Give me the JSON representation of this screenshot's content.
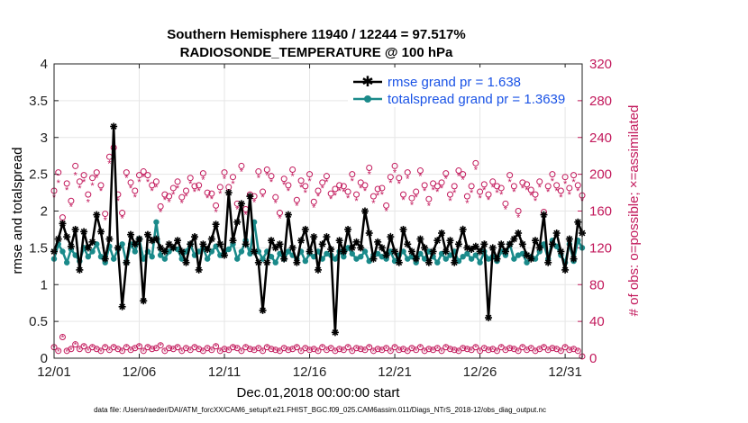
{
  "chart_data": {
    "type": "line",
    "title": "Southern Hemisphere 11940 / 12244 = 97.517%",
    "subtitle": "RADIOSONDE_TEMPERATURE @ 100 hPa",
    "xlabel": "Dec.01,2018 00:00:00 start",
    "ylabel": "rmse and totalspread",
    "ylabel_right": "# of obs: o=possible; ×=assimilated",
    "footer": "data file: /Users/raeder/DAI/ATM_forcXX/CAM6_setup/f.e21.FHIST_BGC.f09_025.CAM6assim.011/Diags_NTrS_2018-12/obs_diag_output.nc",
    "xlim": [
      0,
      124
    ],
    "ylim": [
      0,
      4
    ],
    "ylim_right": [
      0,
      320
    ],
    "x_ticks": [
      0,
      20,
      40,
      60,
      80,
      100,
      120
    ],
    "x_tick_labels": [
      "12/01",
      "12/06",
      "12/11",
      "12/16",
      "12/21",
      "12/26",
      "12/31"
    ],
    "y_ticks": [
      "0",
      "0.5",
      "1",
      "1.5",
      "2",
      "2.5",
      "3",
      "3.5",
      "4"
    ],
    "y_ticks_right": [
      "0",
      "40",
      "80",
      "120",
      "160",
      "200",
      "240",
      "280",
      "320"
    ],
    "legend": {
      "position": "top-right",
      "entries": [
        "rmse grand pr = 1.638",
        "totalspread grand pr = 1.3639"
      ]
    },
    "colors": {
      "rmse": "#000000",
      "totalspread": "#1a8a8a",
      "obs": "#c2185b"
    },
    "series": [
      {
        "name": "rmse grand pr = 1.638",
        "axis": "left",
        "values": [
          1.45,
          1.62,
          1.83,
          1.65,
          1.52,
          1.75,
          1.2,
          1.72,
          1.5,
          1.58,
          1.95,
          1.72,
          1.35,
          1.62,
          3.15,
          1.5,
          0.7,
          1.3,
          1.68,
          1.55,
          1.62,
          0.78,
          1.68,
          1.6,
          1.62,
          1.5,
          1.45,
          1.55,
          1.5,
          1.6,
          1.45,
          1.3,
          1.55,
          1.65,
          1.2,
          1.55,
          1.48,
          1.62,
          1.82,
          1.55,
          1.4,
          2.25,
          1.6,
          1.85,
          2.1,
          1.55,
          2.2,
          1.45,
          1.3,
          0.65,
          1.3,
          1.6,
          1.5,
          1.55,
          1.35,
          1.95,
          1.5,
          1.3,
          1.6,
          1.75,
          1.45,
          1.65,
          1.2,
          1.55,
          1.65,
          1.48,
          0.35,
          1.6,
          1.45,
          1.75,
          1.5,
          1.58,
          1.5,
          2,
          1.7,
          1.35,
          1.58,
          1.5,
          1.4,
          1.65,
          1.45,
          1.3,
          1.75,
          1.55,
          1.45,
          1.35,
          1.62,
          1.5,
          1.3,
          1.45,
          1.6,
          1.7,
          1.45,
          1.6,
          1.3,
          1.55,
          1.75,
          1.5,
          1.48,
          1.52,
          1.45,
          1.55,
          0.55,
          1.5,
          1.35,
          1.55,
          1.45,
          1.55,
          1.62,
          1.7,
          1.55,
          1.4,
          1.35,
          1.6,
          1.5,
          1.95,
          1.3,
          1.55,
          1.7,
          1.45,
          1.2,
          1.62,
          1.35,
          1.85,
          1.7
        ]
      },
      {
        "name": "totalspread grand pr = 1.3639",
        "axis": "left",
        "values": [
          1.35,
          1.55,
          1.45,
          1.3,
          1.48,
          1.4,
          1.32,
          1.5,
          1.38,
          1.45,
          1.55,
          1.38,
          1.3,
          1.52,
          1.35,
          1.48,
          1.55,
          1.3,
          1.55,
          1.45,
          1.62,
          1.35,
          1.45,
          1.38,
          1.85,
          1.4,
          1.35,
          1.45,
          1.5,
          1.48,
          1.35,
          1.45,
          1.55,
          1.4,
          1.45,
          1.5,
          1.35,
          1.45,
          1.52,
          1.4,
          1.45,
          1.48,
          1.55,
          1.35,
          1.45,
          1.6,
          1.42,
          1.85,
          1.45,
          1.35,
          1.45,
          1.38,
          1.3,
          1.42,
          1.35,
          1.45,
          1.4,
          1.35,
          1.45,
          1.32,
          1.42,
          1.38,
          1.45,
          1.35,
          1.42,
          1.4,
          1.35,
          1.45,
          1.38,
          1.5,
          1.42,
          1.35,
          1.38,
          1.45,
          1.32,
          1.4,
          1.42,
          1.38,
          1.35,
          1.45,
          1.32,
          1.4,
          1.45,
          1.35,
          1.38,
          1.3,
          1.42,
          1.35,
          1.45,
          1.38,
          1.3,
          1.42,
          1.35,
          1.4,
          1.45,
          1.32,
          1.38,
          1.42,
          1.35,
          1.4,
          1.3,
          1.45,
          1.35,
          1.38,
          1.32,
          1.45,
          1.4,
          1.55,
          1.35,
          1.4,
          1.42,
          1.3,
          1.38,
          1.35,
          1.45,
          1.55,
          1.35,
          1.6,
          1.52,
          1.4,
          1.3,
          1.55,
          1.32,
          1.6,
          1.5
        ]
      },
      {
        "name": "obs possible",
        "marker": "o",
        "axis": "right",
        "values": [
          182,
          202,
          153,
          190,
          171,
          209,
          192,
          199,
          178,
          196,
          202,
          188,
          157,
          219,
          229,
          178,
          158,
          202,
          191,
          182,
          199,
          203,
          199,
          188,
          192,
          165,
          178,
          176,
          185,
          192,
          175,
          182,
          196,
          187,
          188,
          201,
          180,
          179,
          166,
          186,
          202,
          186,
          197,
          168,
          209,
          162,
          178,
          176,
          203,
          181,
          205,
          198,
          175,
          158,
          195,
          188,
          205,
          172,
          193,
          187,
          200,
          170,
          182,
          191,
          198,
          179,
          184,
          188,
          187,
          181,
          200,
          178,
          191,
          188,
          207,
          176,
          184,
          185,
          166,
          197,
          209,
          196,
          178,
          202,
          174,
          181,
          204,
          188,
          173,
          190,
          187,
          191,
          201,
          178,
          187,
          204,
          200,
          176,
          187,
          212,
          181,
          189,
          178,
          192,
          187,
          185,
          168,
          199,
          187,
          160,
          191,
          189,
          183,
          178,
          192,
          159,
          187,
          200,
          188,
          182,
          197,
          185,
          199,
          188,
          177
        ]
      },
      {
        "name": "obs assimilated",
        "marker": "x",
        "axis": "right",
        "values": [
          176,
          192,
          148,
          184,
          166,
          200,
          186,
          193,
          171,
          189,
          197,
          183,
          151,
          213,
          223,
          172,
          153,
          197,
          186,
          176,
          193,
          198,
          193,
          183,
          187,
          160,
          173,
          171,
          179,
          186,
          170,
          177,
          191,
          182,
          183,
          195,
          175,
          174,
          160,
          180,
          196,
          181,
          191,
          163,
          204,
          157,
          173,
          171,
          197,
          176,
          200,
          193,
          170,
          153,
          190,
          183,
          199,
          167,
          187,
          181,
          194,
          165,
          177,
          186,
          193,
          174,
          178,
          183,
          182,
          175,
          194,
          172,
          186,
          183,
          201,
          170,
          178,
          179,
          161,
          192,
          203,
          191,
          173,
          196,
          168,
          176,
          199,
          183,
          167,
          184,
          182,
          186,
          196,
          172,
          181,
          199,
          195,
          170,
          181,
          206,
          175,
          184,
          173,
          187,
          181,
          179,
          163,
          193,
          182,
          154,
          186,
          184,
          178,
          172,
          187,
          153,
          182,
          194,
          183,
          176,
          191,
          179,
          193,
          183,
          172
        ]
      },
      {
        "name": "obs low possible",
        "marker": "o",
        "axis": "right",
        "values": [
          12,
          8,
          23,
          8,
          10,
          15,
          10,
          13,
          9,
          12,
          10,
          8,
          12,
          9,
          12,
          10,
          8,
          12,
          9,
          11,
          13,
          8,
          12,
          10,
          11,
          14,
          8,
          11,
          10,
          12,
          8,
          11,
          9,
          12,
          10,
          8,
          11,
          9,
          13,
          8,
          10,
          9,
          12,
          11,
          8,
          12,
          10,
          9,
          11,
          8,
          12,
          10,
          9,
          8,
          11,
          9,
          10,
          12,
          8,
          11,
          9,
          10,
          8,
          12,
          9,
          11,
          8,
          10,
          9,
          12,
          8,
          11,
          10,
          9,
          12,
          8,
          10,
          9,
          11,
          8,
          12,
          9,
          10,
          8,
          11,
          9,
          12,
          8,
          10,
          9,
          11,
          8,
          12,
          10,
          9,
          8,
          11,
          10,
          9,
          12,
          8,
          11,
          9,
          10,
          8,
          12,
          9,
          11,
          10,
          8,
          12,
          9,
          11,
          8,
          10,
          12,
          9,
          11,
          10,
          8,
          12,
          9,
          10,
          8,
          2
        ]
      }
    ]
  }
}
